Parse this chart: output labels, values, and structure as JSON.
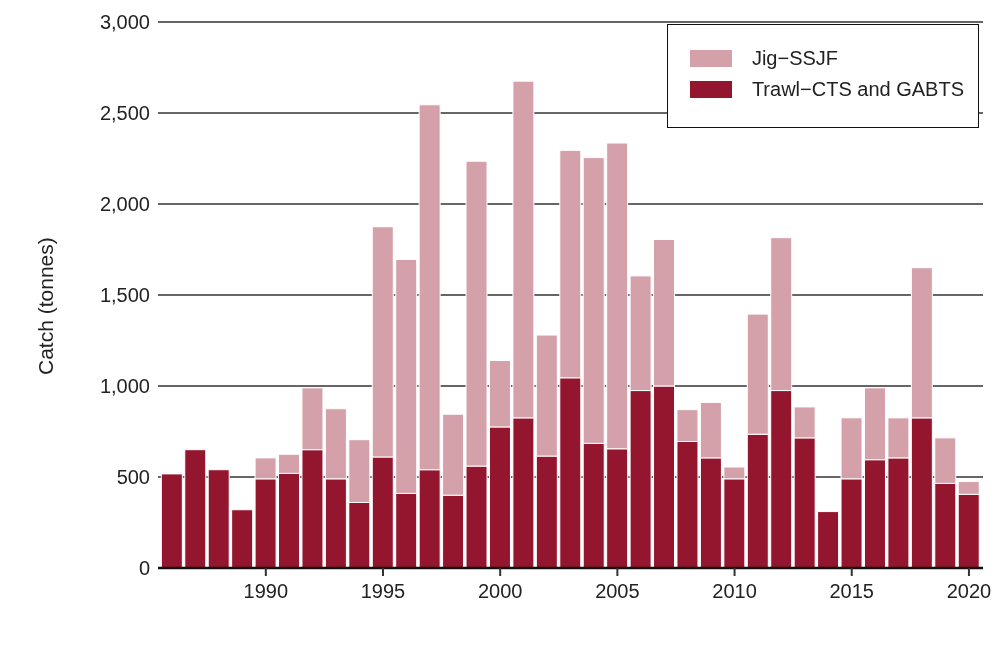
{
  "chart_data": {
    "type": "bar",
    "ylabel": "Catch (tonnes)",
    "stacked": true,
    "x": [
      1986,
      1987,
      1988,
      1989,
      1990,
      1991,
      1992,
      1993,
      1994,
      1995,
      1996,
      1997,
      1998,
      1999,
      2000,
      2001,
      2002,
      2003,
      2004,
      2005,
      2006,
      2007,
      2008,
      2009,
      2010,
      2011,
      2012,
      2013,
      2014,
      2015,
      2016,
      2017,
      2018,
      2019,
      2020
    ],
    "series": [
      {
        "name": "Trawl−CTS and GABTS",
        "color": "#94162e",
        "values": [
          517,
          650,
          540,
          320,
          490,
          520,
          650,
          490,
          360,
          610,
          410,
          540,
          400,
          560,
          775,
          825,
          615,
          1045,
          685,
          655,
          975,
          1000,
          695,
          605,
          490,
          735,
          975,
          715,
          310,
          490,
          595,
          605,
          825,
          465,
          405
        ]
      },
      {
        "name": "Jig−SSJF",
        "color": "#d4a1aa",
        "values": [
          null,
          null,
          null,
          null,
          115,
          105,
          340,
          385,
          345,
          1265,
          1285,
          2005,
          445,
          1675,
          365,
          1850,
          665,
          1250,
          1570,
          1680,
          630,
          805,
          175,
          305,
          65,
          660,
          840,
          170,
          null,
          335,
          395,
          220,
          825,
          250,
          70
        ]
      }
    ],
    "xlim": [
      1985.4,
      2020.6
    ],
    "xticks": [
      1990,
      1995,
      2000,
      2005,
      2010,
      2015,
      2020
    ],
    "ylim": [
      0,
      3000
    ],
    "yticks": [
      0,
      500,
      {
        "value": 1000,
        "label": "1,000"
      },
      {
        "value": 1500,
        "label": "1,500"
      },
      {
        "value": 2000,
        "label": "2,000"
      },
      {
        "value": 2500,
        "label": "2,500"
      },
      {
        "value": 3000,
        "label": "3,000"
      }
    ],
    "grid": "y",
    "legend": "top right"
  }
}
